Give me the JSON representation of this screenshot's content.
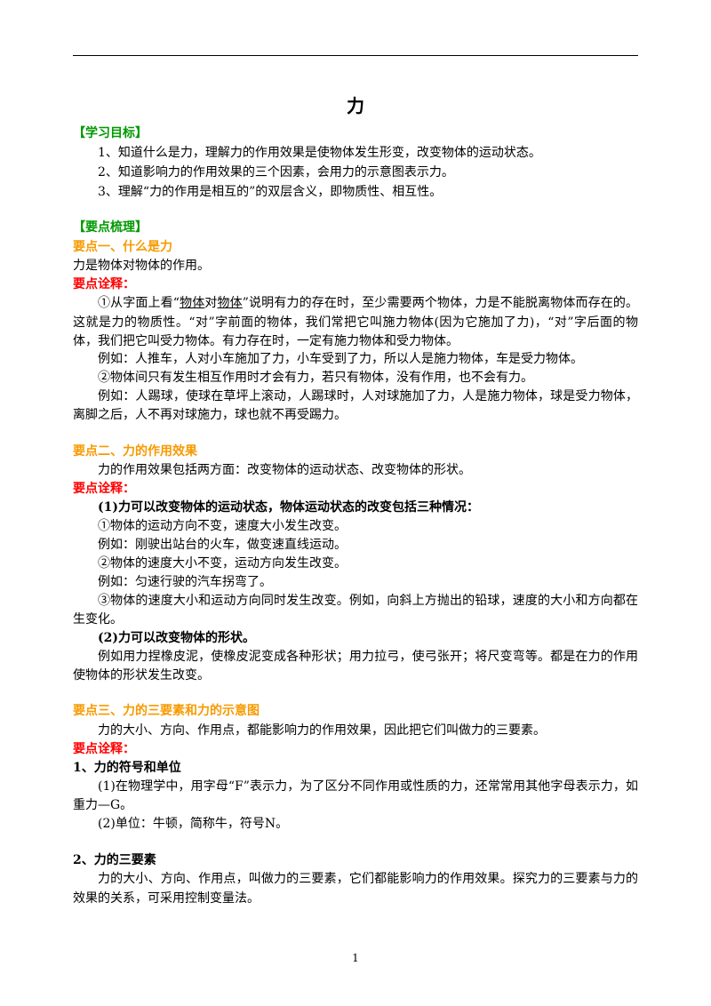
{
  "title": "力",
  "lines": [
    "【学习目标】",
    "1、知道什么是力，理解力的作用效果是使物体发生形变，改变物体的运动状态。",
    "2、知道影响力的作用效果的三个因素，会用力的示意图表示力。",
    "3、理解“力的作用是相互的”的双层含义，即物质性、相互性。",
    "【要点梳理】",
    "要点一、什么是力",
    "力是物体对物体的作用。",
    "要点诠释：",
    [
      "①从字面上看“",
      "物体",
      "对",
      "物体",
      "”说明有力的存在时，至少需要两个物体，力是不能脱离物体而存在的。"
    ],
    "这就是力的物质性。“对”字前面的物体，我们常把它叫施力物体(因为它施加了力)，“对”字后面的物",
    "体，我们把它叫受力物体。有力存在时，一定有施力物体和受力物体。",
    "例如：人推车，人对小车施加了力，小车受到了力，所以人是施力物体，车是受力物体。",
    "②物体间只有发生相互作用时才会有力，若只有物体，没有作用，也不会有力。",
    "例如：人踢球，使球在草坪上滚动，人踢球时，人对球施加了力，人是施力物体，球是受力物体，当球",
    "离脚之后，人不再对球施力，球也就不再受踢力。",
    "要点二、力的作用效果",
    "力的作用效果包括两方面：改变物体的运动状态、改变物体的形状。",
    "要点诠释：",
    "(1)力可以改变物体的运动状态，物体运动状态的改变包括三种情况：",
    "①物体的运动方向不变，速度大小发生改变。",
    "例如：刚驶出站台的火车，做变速直线运动。",
    "②物体的速度大小不变，运动方向发生改变。",
    "例如：匀速行驶的汽车拐弯了。",
    "③物体的速度大小和运动方向同时发生改变。例如，向斜上方抛出的铅球，速度的大小和方向都在发",
    "生变化。",
    "(2)力可以改变物体的形状。",
    "例如用力捏橡皮泥，使橡皮泥变成各种形状；用力拉弓，使弓张开；将尺变弯等。都是在力的作用下，",
    "使物体的形状发生改变。",
    "要点三、力的三要素和力的示意图",
    "力的大小、方向、作用点，都能影响力的作用效果，因此把它们叫做力的三要素。",
    "要点诠释：",
    "1、力的符号和单位",
    "(1)在物理学中，用字母“F”表示力，为了区分不同作用或性质的力，还常常用其他字母表示力，如",
    "重力—G。",
    "(2)单位：牛顿，简称牛，符号N。",
    "2、力的三要素",
    "力的大小、方向、作用点，叫做力的三要素，它们都能影响力的作用效果。探究力的三要素与力的作用",
    "效果的关系，可采用控制变量法。"
  ],
  "page_number": "1"
}
